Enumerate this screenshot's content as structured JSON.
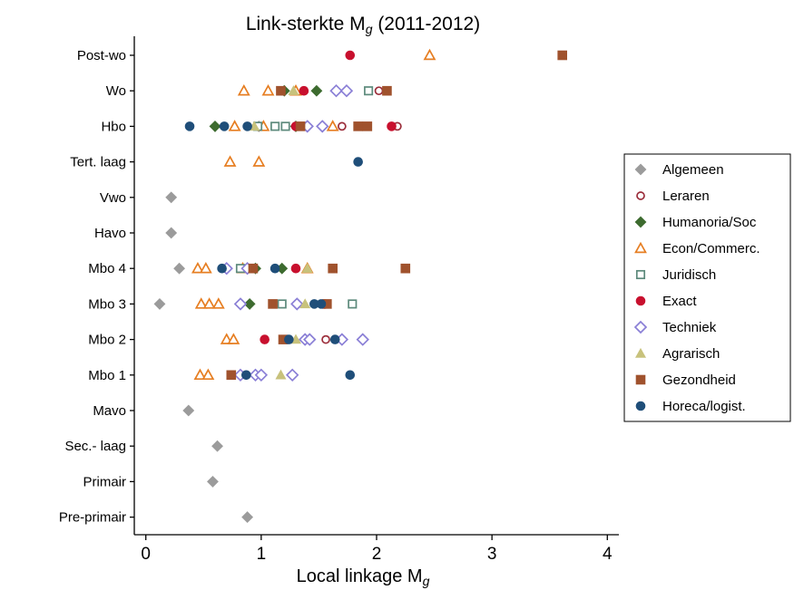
{
  "chart_data": {
    "type": "scatter",
    "title": "Link-sterkte M",
    "title_subscript": "g",
    "title_suffix": " (2011-2012)",
    "xlabel": "Local linkage M",
    "xlabel_subscript": "g",
    "ylabel": "",
    "xlim": [
      -0.1,
      4.1
    ],
    "xticks": [
      0,
      1,
      2,
      3,
      4
    ],
    "grid": false,
    "legend_position": "right",
    "categories": [
      "Post-wo",
      "Wo",
      "Hbo",
      "Tert. laag",
      "Vwo",
      "Havo",
      "Mbo 4",
      "Mbo 3",
      "Mbo 2",
      "Mbo 1",
      "Mavo",
      "Sec.- laag",
      "Primair",
      "Pre-primair"
    ],
    "series": [
      {
        "name": "Algemeen",
        "marker": "diamond",
        "filled": true,
        "color": "#9b9b9b",
        "points": [
          [
            "Vwo",
            0.22
          ],
          [
            "Havo",
            0.22
          ],
          [
            "Mbo 4",
            0.29
          ],
          [
            "Mbo 3",
            0.12
          ],
          [
            "Mavo",
            0.37
          ],
          [
            "Sec.- laag",
            0.62
          ],
          [
            "Primair",
            0.58
          ],
          [
            "Pre-primair",
            0.88
          ],
          [
            "Hbo",
            0.98
          ]
        ]
      },
      {
        "name": "Leraren",
        "marker": "circle",
        "filled": false,
        "color": "#9b2d3a",
        "points": [
          [
            "Wo",
            2.02
          ],
          [
            "Hbo",
            1.7
          ],
          [
            "Hbo",
            2.18
          ],
          [
            "Mbo 2",
            1.56
          ]
        ]
      },
      {
        "name": "Humanoria/Soc",
        "marker": "diamond",
        "filled": true,
        "color": "#3d6b2f",
        "points": [
          [
            "Wo",
            1.2
          ],
          [
            "Wo",
            1.48
          ],
          [
            "Hbo",
            0.6
          ],
          [
            "Hbo",
            1.3
          ],
          [
            "Mbo 4",
            0.95
          ],
          [
            "Mbo 4",
            1.18
          ],
          [
            "Mbo 3",
            0.9
          ]
        ]
      },
      {
        "name": "Econ/Commerc.",
        "marker": "triangle",
        "filled": false,
        "color": "#e67e22",
        "points": [
          [
            "Post-wo",
            2.46
          ],
          [
            "Wo",
            0.85
          ],
          [
            "Wo",
            1.06
          ],
          [
            "Wo",
            1.3
          ],
          [
            "Hbo",
            0.77
          ],
          [
            "Hbo",
            1.02
          ],
          [
            "Hbo",
            1.62
          ],
          [
            "Tert. laag",
            0.73
          ],
          [
            "Tert. laag",
            0.98
          ],
          [
            "Mbo 4",
            0.45
          ],
          [
            "Mbo 4",
            0.52
          ],
          [
            "Mbo 4",
            0.84
          ],
          [
            "Mbo 4",
            1.4
          ],
          [
            "Mbo 3",
            0.48
          ],
          [
            "Mbo 3",
            0.55
          ],
          [
            "Mbo 3",
            0.63
          ],
          [
            "Mbo 2",
            0.7
          ],
          [
            "Mbo 2",
            0.76
          ],
          [
            "Mbo 1",
            0.47
          ],
          [
            "Mbo 1",
            0.54
          ]
        ]
      },
      {
        "name": "Juridisch",
        "marker": "square",
        "filled": false,
        "color": "#5d8a7c",
        "points": [
          [
            "Wo",
            1.93
          ],
          [
            "Hbo",
            0.97
          ],
          [
            "Hbo",
            1.12
          ],
          [
            "Hbo",
            1.21
          ],
          [
            "Mbo 4",
            0.82
          ],
          [
            "Mbo 3",
            1.18
          ],
          [
            "Mbo 3",
            1.79
          ]
        ]
      },
      {
        "name": "Exact",
        "marker": "circle",
        "filled": true,
        "color": "#c8102e",
        "points": [
          [
            "Post-wo",
            1.77
          ],
          [
            "Wo",
            1.37
          ],
          [
            "Hbo",
            1.3
          ],
          [
            "Hbo",
            2.13
          ],
          [
            "Mbo 4",
            1.3
          ],
          [
            "Mbo 3",
            1.55
          ],
          [
            "Mbo 2",
            1.03
          ]
        ]
      },
      {
        "name": "Techniek",
        "marker": "diamond",
        "filled": false,
        "color": "#8a7fd6",
        "points": [
          [
            "Wo",
            1.65
          ],
          [
            "Wo",
            1.74
          ],
          [
            "Hbo",
            1.4
          ],
          [
            "Hbo",
            1.53
          ],
          [
            "Mbo 4",
            0.7
          ],
          [
            "Mbo 4",
            0.88
          ],
          [
            "Mbo 3",
            0.82
          ],
          [
            "Mbo 3",
            1.31
          ],
          [
            "Mbo 2",
            1.38
          ],
          [
            "Mbo 2",
            1.42
          ],
          [
            "Mbo 2",
            1.7
          ],
          [
            "Mbo 2",
            1.88
          ],
          [
            "Mbo 1",
            0.82
          ],
          [
            "Mbo 1",
            0.95
          ],
          [
            "Mbo 1",
            1.0
          ],
          [
            "Mbo 1",
            1.27
          ]
        ]
      },
      {
        "name": "Agrarisch",
        "marker": "triangle",
        "filled": true,
        "color": "#c8c27c",
        "points": [
          [
            "Wo",
            1.28
          ],
          [
            "Hbo",
            0.94
          ],
          [
            "Mbo 4",
            1.4
          ],
          [
            "Mbo 3",
            1.38
          ],
          [
            "Mbo 2",
            1.3
          ],
          [
            "Mbo 1",
            1.17
          ]
        ]
      },
      {
        "name": "Gezondheid",
        "marker": "square",
        "filled": true,
        "color": "#a0522d",
        "points": [
          [
            "Post-wo",
            3.61
          ],
          [
            "Wo",
            1.17
          ],
          [
            "Wo",
            2.09
          ],
          [
            "Hbo",
            1.34
          ],
          [
            "Hbo",
            1.84
          ],
          [
            "Hbo",
            1.92
          ],
          [
            "Mbo 4",
            0.93
          ],
          [
            "Mbo 4",
            1.62
          ],
          [
            "Mbo 4",
            2.25
          ],
          [
            "Mbo 3",
            1.1
          ],
          [
            "Mbo 3",
            1.57
          ],
          [
            "Mbo 2",
            1.19
          ],
          [
            "Mbo 1",
            0.74
          ]
        ]
      },
      {
        "name": "Horeca/logist.",
        "marker": "circle",
        "filled": true,
        "color": "#1f4e79",
        "points": [
          [
            "Hbo",
            0.38
          ],
          [
            "Hbo",
            0.68
          ],
          [
            "Hbo",
            0.88
          ],
          [
            "Tert. laag",
            1.84
          ],
          [
            "Mbo 4",
            0.66
          ],
          [
            "Mbo 4",
            1.12
          ],
          [
            "Mbo 3",
            1.46
          ],
          [
            "Mbo 3",
            1.52
          ],
          [
            "Mbo 2",
            1.24
          ],
          [
            "Mbo 2",
            1.64
          ],
          [
            "Mbo 1",
            0.87
          ],
          [
            "Mbo 1",
            1.77
          ]
        ]
      }
    ]
  }
}
